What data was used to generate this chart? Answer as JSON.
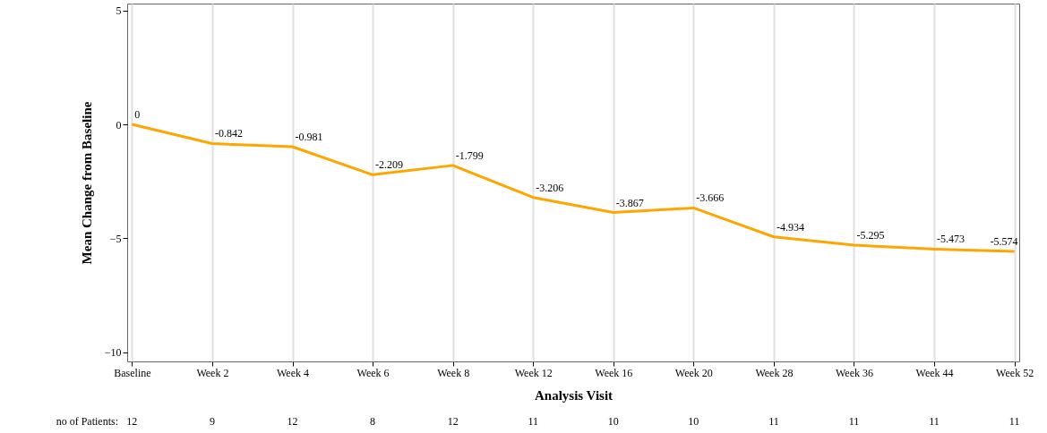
{
  "chart_data": {
    "type": "line",
    "xlabel": "Analysis Visit",
    "ylabel": "Mean Change from Baseline",
    "categories": [
      "Baseline",
      "Week 2",
      "Week 4",
      "Week 6",
      "Week 8",
      "Week 12",
      "Week 16",
      "Week 20",
      "Week 28",
      "Week 36",
      "Week 44",
      "Week 52"
    ],
    "series": [
      {
        "color": "#ffa500",
        "values": [
          0,
          -0.842,
          -0.981,
          -2.209,
          -1.799,
          -3.206,
          -3.867,
          -3.666,
          -4.934,
          -5.295,
          -5.473,
          -5.574
        ]
      }
    ],
    "ylim": [
      -10.4,
      5.3
    ],
    "yticks": [
      -10,
      -5,
      0,
      5
    ],
    "grid": "x",
    "data_labels": true,
    "marker": "none",
    "line_style": "solid",
    "annotations": [
      "no of Patients:",
      "12",
      "9",
      "12",
      "8",
      "12",
      "11",
      "10",
      "10",
      "11",
      "11",
      "11",
      "11"
    ]
  }
}
